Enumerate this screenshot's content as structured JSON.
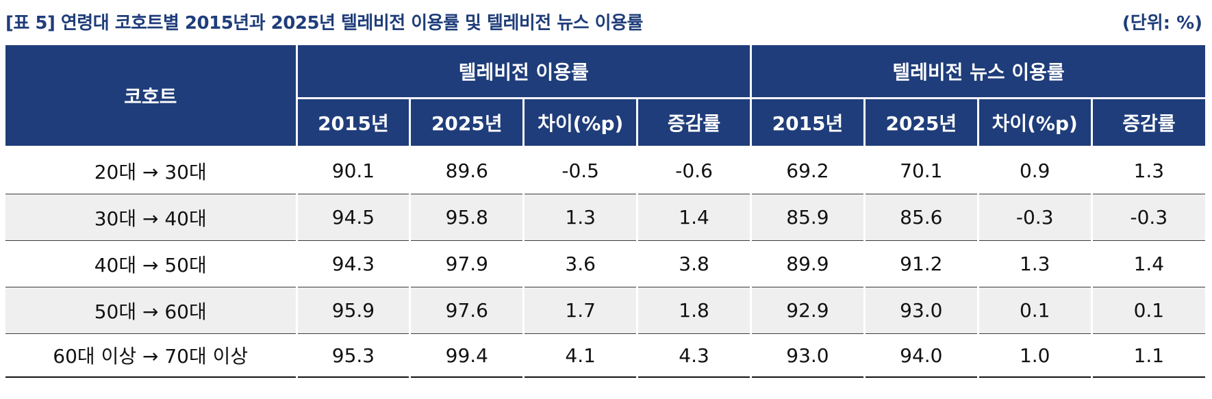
{
  "title": "[표 5] 연령대 코호트별 2015년과 2025년 텔레비전 이용률 및 텔레비전 뉴스 이용률",
  "unit": "(단위: %)",
  "header": {
    "cohort": "코호트",
    "group1": "텔레비전 이용률",
    "group2": "텔레비전 뉴스 이용률",
    "subcols": [
      "2015년",
      "2025년",
      "차이(%p)",
      "증감률",
      "2015년",
      "2025년",
      "차이(%p)",
      "증감률"
    ]
  },
  "rows": [
    {
      "cohort": "20대 → 30대",
      "values": [
        "90.1",
        "89.6",
        "-0.5",
        "-0.6",
        "69.2",
        "70.1",
        "0.9",
        "1.3"
      ]
    },
    {
      "cohort": "30대 → 40대",
      "values": [
        "94.5",
        "95.8",
        "1.3",
        "1.4",
        "85.9",
        "85.6",
        "-0.3",
        "-0.3"
      ]
    },
    {
      "cohort": "40대 → 50대",
      "values": [
        "94.3",
        "97.9",
        "3.6",
        "3.8",
        "89.9",
        "91.2",
        "1.3",
        "1.4"
      ]
    },
    {
      "cohort": "50대 → 60대",
      "values": [
        "95.9",
        "97.6",
        "1.7",
        "1.8",
        "92.9",
        "93.0",
        "0.1",
        "0.1"
      ]
    },
    {
      "cohort": "60대 이상 → 70대 이상",
      "values": [
        "95.3",
        "99.4",
        "4.1",
        "4.3",
        "93.0",
        "94.0",
        "1.0",
        "1.1"
      ]
    }
  ],
  "colors": {
    "header_bg": "#1f3d7a",
    "title": "#1f3d7a",
    "shade_row": "#efefef"
  }
}
